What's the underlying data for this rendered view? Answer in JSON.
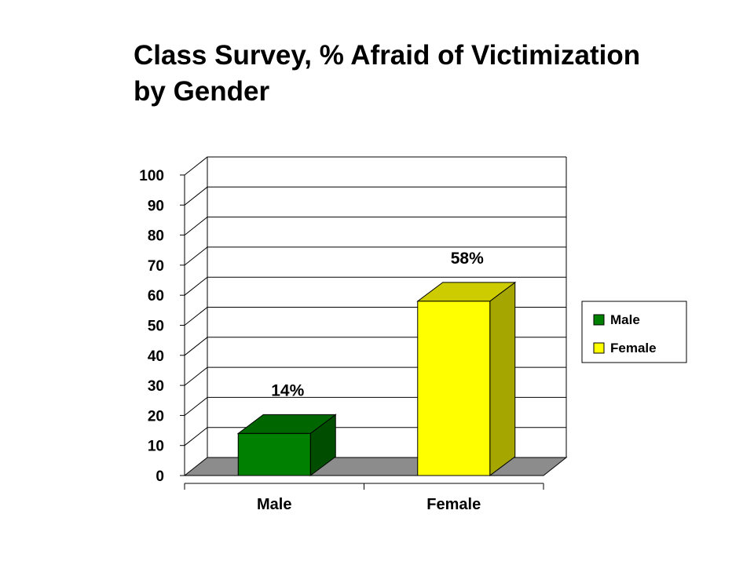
{
  "chart_data": {
    "type": "bar",
    "title_lines": [
      "Class Survey, % Afraid of Victimization",
      "by Gender"
    ],
    "categories": [
      "Male",
      "Female"
    ],
    "values": [
      14,
      58
    ],
    "value_labels": [
      "14%",
      "58%"
    ],
    "ylim": [
      0,
      100
    ],
    "yticks": [
      0,
      10,
      20,
      30,
      40,
      50,
      60,
      70,
      80,
      90,
      100
    ],
    "grid": true,
    "three_d": true,
    "legend": {
      "placement": "right",
      "entries": [
        {
          "label": "Male",
          "color": "#008000"
        },
        {
          "label": "Female",
          "color": "#ffff00"
        }
      ]
    },
    "colors": {
      "Male": {
        "front": "#008000",
        "top": "#006600",
        "side": "#004d00"
      },
      "Female": {
        "front": "#ffff00",
        "top": "#cccc00",
        "side": "#a6a600"
      },
      "floor": "#8c8c8c"
    }
  }
}
